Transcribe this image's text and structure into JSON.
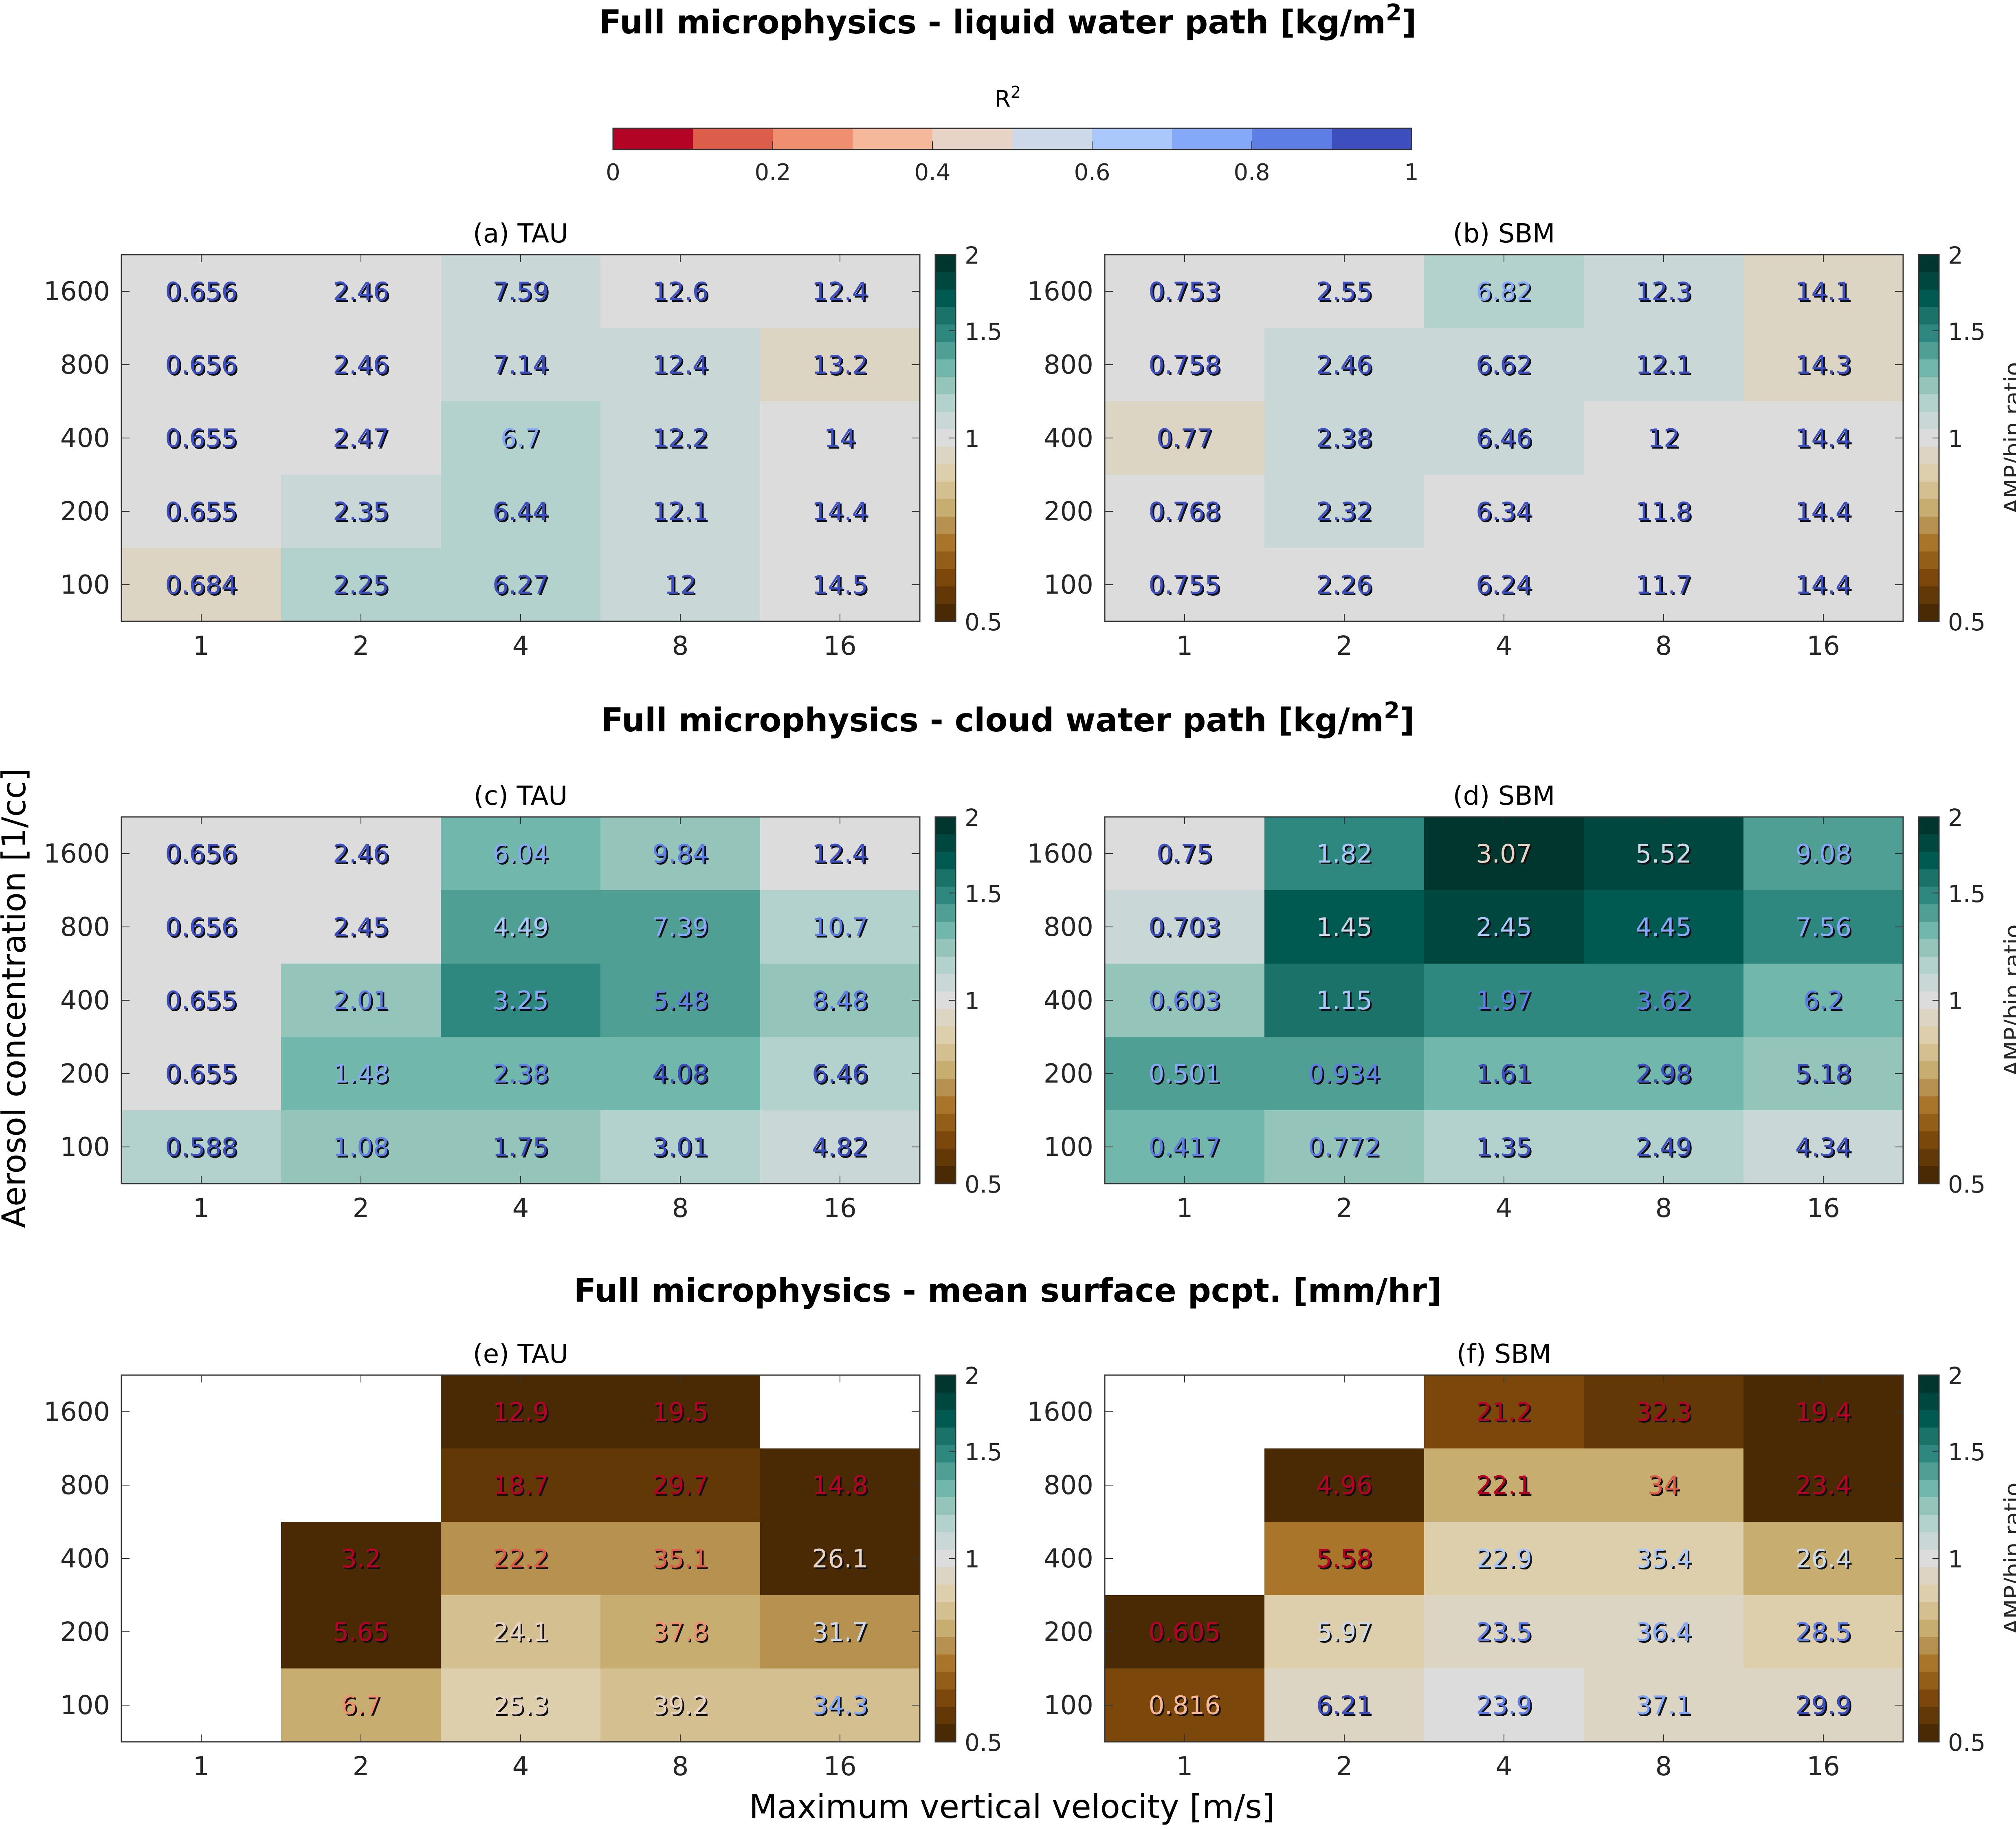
{
  "chart_data": {
    "type": "heatmap",
    "xlabel": "Maximum vertical velocity [m/s]",
    "ylabel": "Aerosol concentration [1/cc]",
    "x_categories": [
      "1",
      "2",
      "4",
      "8",
      "16"
    ],
    "y_categories": [
      "1600",
      "800",
      "400",
      "200",
      "100"
    ],
    "r2_colorbar": {
      "label": "R",
      "label_superscript": "2",
      "range": [
        0,
        1
      ],
      "ticks": [
        "0",
        "0.2",
        "0.4",
        "0.6",
        "0.8",
        "1"
      ],
      "colors": [
        "#b40426",
        "#dc5d4a",
        "#f08f70",
        "#f6b89a",
        "#e8d4c7",
        "#cdd9e8",
        "#abc8fc",
        "#86a8f8",
        "#5f7ee5",
        "#3d4fbf"
      ]
    },
    "ratio_colorbar": {
      "label": "AMP/bin ratio",
      "scale": "log",
      "range": [
        0.5,
        2
      ],
      "ticks": [
        "2",
        "1.5",
        "1",
        "0.5"
      ],
      "colors_top_to_bottom": [
        "#01362e",
        "#00473f",
        "#005a52",
        "#1b7269",
        "#2f8880",
        "#509f95",
        "#72b7ab",
        "#95c4bb",
        "#b3d2cd",
        "#c9d8d6",
        "#dcdcdc",
        "#ddd5c3",
        "#ddcfac",
        "#d3bf90",
        "#c8ad70",
        "#b79150",
        "#a8752b",
        "#935e17",
        "#7c470a",
        "#623807",
        "#4a2a05"
      ]
    },
    "sections": [
      {
        "title": "Full microphysics - liquid water path [kg/m",
        "title_superscript": "2",
        "title_suffix": "]",
        "panels": [
          {
            "title": "(a) TAU",
            "values": [
              [
                "0.656",
                "2.46",
                "7.59",
                "12.6",
                "12.4"
              ],
              [
                "0.656",
                "2.46",
                "7.14",
                "12.4",
                "13.2"
              ],
              [
                "0.655",
                "2.47",
                "6.7",
                "12.2",
                "14"
              ],
              [
                "0.655",
                "2.35",
                "6.44",
                "12.1",
                "14.4"
              ],
              [
                "0.684",
                "2.25",
                "6.27",
                "12",
                "14.5"
              ]
            ],
            "ratio_step": [
              [
                10,
                10,
                9,
                10,
                10
              ],
              [
                10,
                10,
                9,
                9,
                11
              ],
              [
                10,
                10,
                8,
                9,
                10
              ],
              [
                10,
                9,
                8,
                9,
                10
              ],
              [
                11,
                8,
                8,
                9,
                10
              ]
            ],
            "r2_step": [
              [
                9,
                9,
                9,
                9,
                9
              ],
              [
                9,
                9,
                9,
                9,
                9
              ],
              [
                9,
                9,
                7,
                9,
                9
              ],
              [
                9,
                9,
                9,
                9,
                9
              ],
              [
                9,
                9,
                9,
                9,
                9
              ]
            ]
          },
          {
            "title": "(b) SBM",
            "values": [
              [
                "0.753",
                "2.55",
                "6.82",
                "12.3",
                "14.1"
              ],
              [
                "0.758",
                "2.46",
                "6.62",
                "12.1",
                "14.3"
              ],
              [
                "0.77",
                "2.38",
                "6.46",
                "12",
                "14.4"
              ],
              [
                "0.768",
                "2.32",
                "6.34",
                "11.8",
                "14.4"
              ],
              [
                "0.755",
                "2.26",
                "6.24",
                "11.7",
                "14.4"
              ]
            ],
            "ratio_step": [
              [
                10,
                10,
                8,
                9,
                11
              ],
              [
                10,
                9,
                9,
                9,
                11
              ],
              [
                11,
                9,
                9,
                10,
                10
              ],
              [
                10,
                9,
                10,
                10,
                10
              ],
              [
                10,
                10,
                10,
                10,
                10
              ]
            ],
            "r2_step": [
              [
                9,
                9,
                7,
                9,
                9
              ],
              [
                9,
                9,
                9,
                9,
                9
              ],
              [
                9,
                9,
                9,
                9,
                9
              ],
              [
                9,
                9,
                9,
                9,
                9
              ],
              [
                9,
                9,
                9,
                9,
                9
              ]
            ]
          }
        ]
      },
      {
        "title": "Full microphysics - cloud water path [kg/m",
        "title_superscript": "2",
        "title_suffix": "]",
        "panels": [
          {
            "title": "(c) TAU",
            "values": [
              [
                "0.656",
                "2.46",
                "6.04",
                "9.84",
                "12.4"
              ],
              [
                "0.656",
                "2.45",
                "4.49",
                "7.39",
                "10.7"
              ],
              [
                "0.655",
                "2.01",
                "3.25",
                "5.48",
                "8.48"
              ],
              [
                "0.655",
                "1.48",
                "2.38",
                "4.08",
                "6.46"
              ],
              [
                "0.588",
                "1.08",
                "1.75",
                "3.01",
                "4.82"
              ]
            ],
            "ratio_step": [
              [
                10,
                10,
                6,
                7,
                10
              ],
              [
                10,
                10,
                5,
                5,
                8
              ],
              [
                10,
                7,
                4,
                5,
                7
              ],
              [
                10,
                6,
                6,
                6,
                8
              ],
              [
                8,
                7,
                7,
                8,
                9
              ]
            ],
            "r2_step": [
              [
                9,
                9,
                7,
                8,
                9
              ],
              [
                9,
                9,
                6,
                7,
                8
              ],
              [
                9,
                8,
                7,
                8,
                8
              ],
              [
                9,
                7,
                8,
                9,
                9
              ],
              [
                9,
                8,
                9,
                9,
                9
              ]
            ]
          },
          {
            "title": "(d) SBM",
            "values": [
              [
                "0.75",
                "1.82",
                "3.07",
                "5.52",
                "9.08"
              ],
              [
                "0.703",
                "1.45",
                "2.45",
                "4.45",
                "7.56"
              ],
              [
                "0.603",
                "1.15",
                "1.97",
                "3.62",
                "6.2"
              ],
              [
                "0.501",
                "0.934",
                "1.61",
                "2.98",
                "5.18"
              ],
              [
                "0.417",
                "0.772",
                "1.35",
                "2.49",
                "4.34"
              ]
            ],
            "ratio_step": [
              [
                10,
                4,
                0,
                1,
                5
              ],
              [
                9,
                2,
                1,
                2,
                4
              ],
              [
                7,
                3,
                4,
                4,
                6
              ],
              [
                5,
                5,
                6,
                6,
                7
              ],
              [
                6,
                7,
                8,
                8,
                9
              ]
            ],
            "r2_step": [
              [
                9,
                6,
                4,
                5,
                7
              ],
              [
                9,
                5,
                6,
                7,
                7
              ],
              [
                8,
                6,
                8,
                8,
                8
              ],
              [
                7,
                8,
                9,
                9,
                9
              ],
              [
                8,
                8,
                9,
                9,
                9
              ]
            ]
          }
        ]
      },
      {
        "title": "Full microphysics - mean surface pcpt. [mm/hr]",
        "title_superscript": "",
        "title_suffix": "",
        "panels": [
          {
            "title": "(e) TAU",
            "values": [
              [
                "",
                "",
                "12.9",
                "19.5",
                ""
              ],
              [
                "",
                "",
                "18.7",
                "29.7",
                "14.8"
              ],
              [
                "",
                "3.2",
                "22.2",
                "35.1",
                "26.1"
              ],
              [
                "",
                "5.65",
                "24.1",
                "37.8",
                "31.7"
              ],
              [
                "",
                "6.7",
                "25.3",
                "39.2",
                "34.3"
              ]
            ],
            "ratio_step": [
              [
                null,
                null,
                20,
                20,
                null
              ],
              [
                null,
                null,
                19,
                19,
                20
              ],
              [
                null,
                20,
                15,
                15,
                20
              ],
              [
                null,
                20,
                13,
                14,
                15
              ],
              [
                null,
                14,
                12,
                13,
                13
              ]
            ],
            "r2_step": [
              [
                null,
                null,
                0,
                0,
                null
              ],
              [
                null,
                null,
                0,
                0,
                0
              ],
              [
                null,
                0,
                1,
                1,
                4
              ],
              [
                null,
                0,
                4,
                2,
                5
              ],
              [
                null,
                2,
                4,
                4,
                7
              ]
            ]
          },
          {
            "title": "(f) SBM",
            "values": [
              [
                "",
                "",
                "21.2",
                "32.3",
                "19.4"
              ],
              [
                "",
                "4.96",
                "22.1",
                "34",
                "23.4"
              ],
              [
                "",
                "5.58",
                "22.9",
                "35.4",
                "26.4"
              ],
              [
                "0.605",
                "5.97",
                "23.5",
                "36.4",
                "28.5"
              ],
              [
                "0.816",
                "6.21",
                "23.9",
                "37.1",
                "29.9"
              ]
            ],
            "ratio_step": [
              [
                null,
                null,
                18,
                19,
                20
              ],
              [
                null,
                20,
                14,
                14,
                20
              ],
              [
                null,
                16,
                12,
                12,
                14
              ],
              [
                20,
                12,
                11,
                11,
                12
              ],
              [
                18,
                11,
                10,
                11,
                11
              ]
            ],
            "r2_step": [
              [
                null,
                null,
                0,
                0,
                0
              ],
              [
                null,
                0,
                0,
                1,
                0
              ],
              [
                null,
                0,
                6,
                6,
                5
              ],
              [
                0,
                5,
                8,
                7,
                8
              ],
              [
                3,
                9,
                8,
                7,
                9
              ]
            ]
          }
        ]
      }
    ]
  }
}
